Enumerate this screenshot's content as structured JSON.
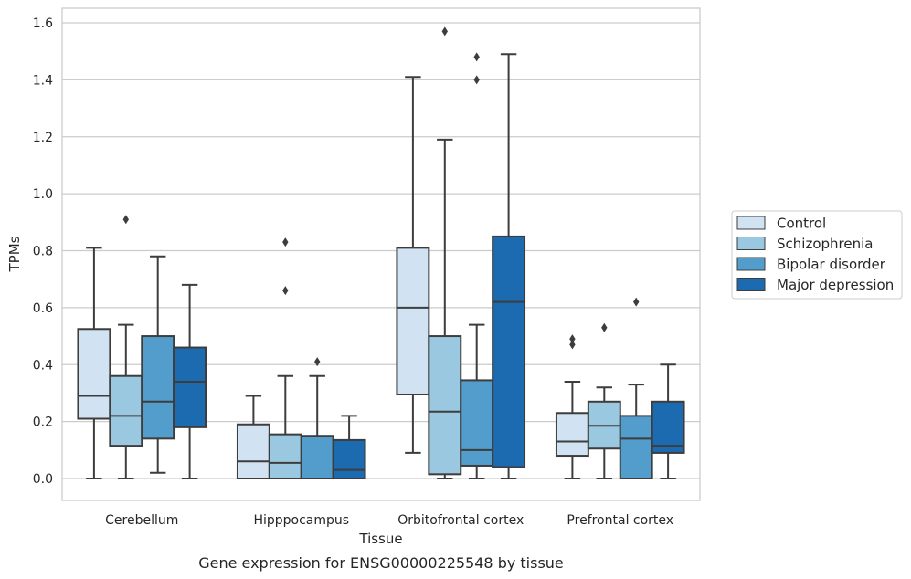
{
  "caption": "Gene expression for ENSG00000225548 by tissue",
  "chart_data": {
    "type": "box",
    "xlabel": "Tissue",
    "ylabel": "TPMs",
    "ylim": [
      -0.075,
      1.65
    ],
    "yticks": [
      0.0,
      0.2,
      0.4,
      0.6,
      0.8,
      1.0,
      1.2,
      1.4,
      1.6
    ],
    "ytick_labels": [
      "0.0",
      "0.2",
      "0.4",
      "0.6",
      "0.8",
      "1.0",
      "1.2",
      "1.4",
      "1.6"
    ],
    "grid": "horizontal",
    "legend_position": "right, outside",
    "categories": [
      "Cerebellum",
      "Hipppocampus",
      "Orbitofrontal cortex",
      "Prefrontal cortex"
    ],
    "series": [
      {
        "name": "Control",
        "color": "#d1e2f2",
        "boxes": [
          {
            "whisker_low": 0.0,
            "q1": 0.21,
            "median": 0.29,
            "q3": 0.525,
            "whisker_high": 0.81,
            "outliers": []
          },
          {
            "whisker_low": 0.0,
            "q1": 0.0,
            "median": 0.06,
            "q3": 0.19,
            "whisker_high": 0.29,
            "outliers": []
          },
          {
            "whisker_low": 0.09,
            "q1": 0.295,
            "median": 0.6,
            "q3": 0.81,
            "whisker_high": 1.41,
            "outliers": []
          },
          {
            "whisker_low": 0.0,
            "q1": 0.08,
            "median": 0.13,
            "q3": 0.23,
            "whisker_high": 0.34,
            "outliers": [
              0.47,
              0.49
            ]
          }
        ]
      },
      {
        "name": "Schizophrenia",
        "color": "#9ac8e0",
        "boxes": [
          {
            "whisker_low": 0.0,
            "q1": 0.115,
            "median": 0.22,
            "q3": 0.36,
            "whisker_high": 0.54,
            "outliers": [
              0.91
            ]
          },
          {
            "whisker_low": 0.0,
            "q1": 0.0,
            "median": 0.055,
            "q3": 0.155,
            "whisker_high": 0.36,
            "outliers": [
              0.66,
              0.83
            ]
          },
          {
            "whisker_low": 0.0,
            "q1": 0.015,
            "median": 0.235,
            "q3": 0.5,
            "whisker_high": 1.19,
            "outliers": [
              1.57
            ]
          },
          {
            "whisker_low": 0.0,
            "q1": 0.105,
            "median": 0.185,
            "q3": 0.27,
            "whisker_high": 0.32,
            "outliers": [
              0.53
            ]
          }
        ]
      },
      {
        "name": "Bipolar disorder",
        "color": "#529dcc",
        "boxes": [
          {
            "whisker_low": 0.02,
            "q1": 0.14,
            "median": 0.27,
            "q3": 0.5,
            "whisker_high": 0.78,
            "outliers": []
          },
          {
            "whisker_low": 0.0,
            "q1": 0.0,
            "median": 0.0,
            "q3": 0.15,
            "whisker_high": 0.36,
            "outliers": [
              0.41
            ]
          },
          {
            "whisker_low": 0.0,
            "q1": 0.045,
            "median": 0.1,
            "q3": 0.345,
            "whisker_high": 0.54,
            "outliers": [
              1.4,
              1.48
            ]
          },
          {
            "whisker_low": 0.0,
            "q1": 0.0,
            "median": 0.14,
            "q3": 0.22,
            "whisker_high": 0.33,
            "outliers": [
              0.62
            ]
          }
        ]
      },
      {
        "name": "Major depression",
        "color": "#1c6aaf",
        "boxes": [
          {
            "whisker_low": 0.0,
            "q1": 0.18,
            "median": 0.34,
            "q3": 0.46,
            "whisker_high": 0.68,
            "outliers": []
          },
          {
            "whisker_low": 0.0,
            "q1": 0.0,
            "median": 0.03,
            "q3": 0.135,
            "whisker_high": 0.22,
            "outliers": []
          },
          {
            "whisker_low": 0.0,
            "q1": 0.04,
            "median": 0.62,
            "q3": 0.85,
            "whisker_high": 1.49,
            "outliers": []
          },
          {
            "whisker_low": 0.0,
            "q1": 0.09,
            "median": 0.115,
            "q3": 0.27,
            "whisker_high": 0.4,
            "outliers": []
          }
        ]
      }
    ]
  }
}
